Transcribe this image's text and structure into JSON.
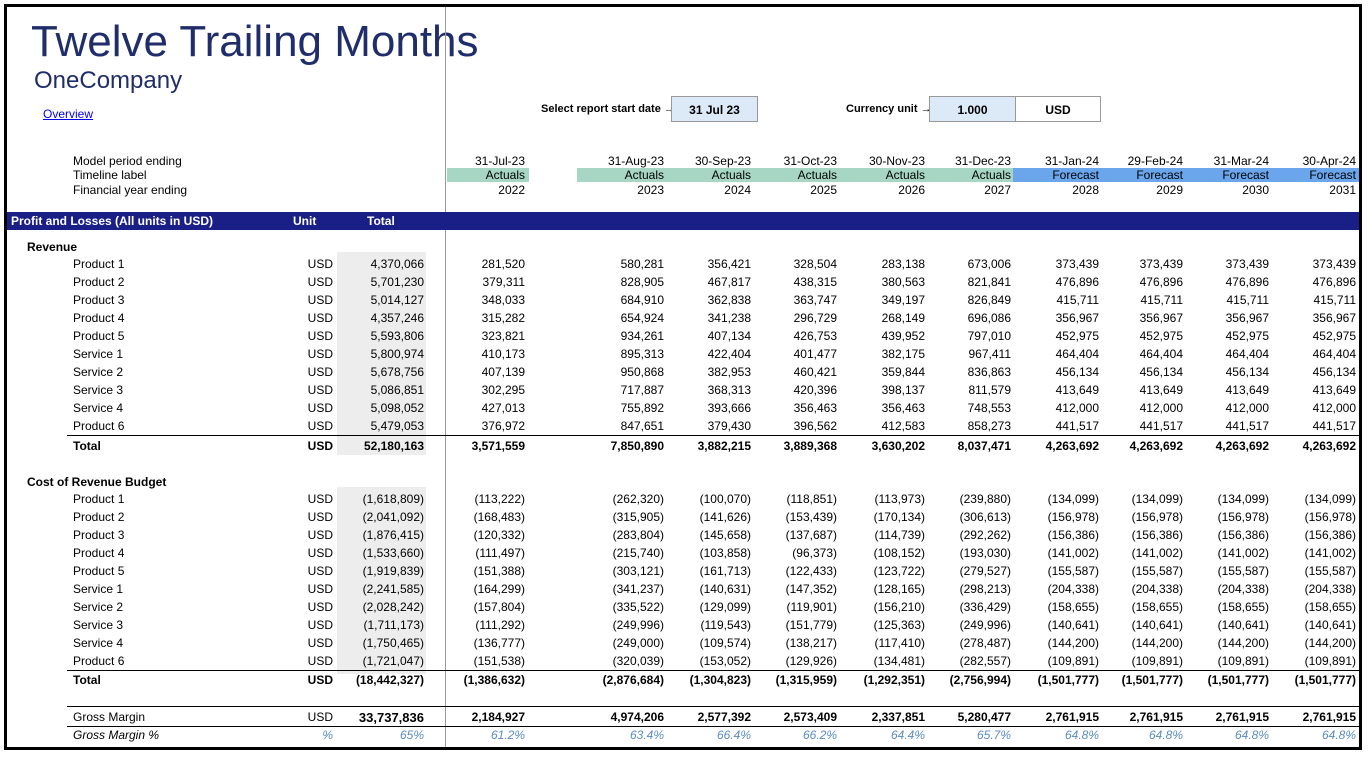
{
  "title": "Twelve Trailing Months",
  "subtitle": "OneCompany",
  "overview_link": "Overview",
  "controls": {
    "start_date_label": "Select report start date →",
    "start_date_value": "31 Jul 23",
    "currency_label": "Currency unit →",
    "currency_value": "1.000",
    "currency_code": "USD"
  },
  "header_labels": {
    "period": "Model period ending",
    "timeline": "Timeline label",
    "fy": "Financial year ending"
  },
  "columns": [
    {
      "period": "31-Jul-23",
      "timeline": "Actuals",
      "fy": "2022"
    },
    {
      "period": "31-Aug-23",
      "timeline": "Actuals",
      "fy": "2023"
    },
    {
      "period": "30-Sep-23",
      "timeline": "Actuals",
      "fy": "2024"
    },
    {
      "period": "31-Oct-23",
      "timeline": "Actuals",
      "fy": "2025"
    },
    {
      "period": "30-Nov-23",
      "timeline": "Actuals",
      "fy": "2026"
    },
    {
      "period": "31-Dec-23",
      "timeline": "Actuals",
      "fy": "2027"
    },
    {
      "period": "31-Jan-24",
      "timeline": "Forecast",
      "fy": "2028"
    },
    {
      "period": "29-Feb-24",
      "timeline": "Forecast",
      "fy": "2029"
    },
    {
      "period": "31-Mar-24",
      "timeline": "Forecast",
      "fy": "2030"
    },
    {
      "period": "30-Apr-24",
      "timeline": "Forecast",
      "fy": "2031"
    }
  ],
  "band": {
    "title": "Profit and Losses (All units in USD)",
    "unit": "Unit",
    "total": "Total"
  },
  "revenue": {
    "title": "Revenue",
    "rows": [
      {
        "label": "Product 1",
        "unit": "USD",
        "total": "4,370,066",
        "values": [
          "281,520",
          "580,281",
          "356,421",
          "328,504",
          "283,138",
          "673,006",
          "373,439",
          "373,439",
          "373,439",
          "373,439"
        ]
      },
      {
        "label": "Product 2",
        "unit": "USD",
        "total": "5,701,230",
        "values": [
          "379,311",
          "828,905",
          "467,817",
          "438,315",
          "380,563",
          "821,841",
          "476,896",
          "476,896",
          "476,896",
          "476,896"
        ]
      },
      {
        "label": "Product 3",
        "unit": "USD",
        "total": "5,014,127",
        "values": [
          "348,033",
          "684,910",
          "362,838",
          "363,747",
          "349,197",
          "826,849",
          "415,711",
          "415,711",
          "415,711",
          "415,711"
        ]
      },
      {
        "label": "Product 4",
        "unit": "USD",
        "total": "4,357,246",
        "values": [
          "315,282",
          "654,924",
          "341,238",
          "296,729",
          "268,149",
          "696,086",
          "356,967",
          "356,967",
          "356,967",
          "356,967"
        ]
      },
      {
        "label": "Product 5",
        "unit": "USD",
        "total": "5,593,806",
        "values": [
          "323,821",
          "934,261",
          "407,134",
          "426,753",
          "439,952",
          "797,010",
          "452,975",
          "452,975",
          "452,975",
          "452,975"
        ]
      },
      {
        "label": "Service 1",
        "unit": "USD",
        "total": "5,800,974",
        "values": [
          "410,173",
          "895,313",
          "422,404",
          "401,477",
          "382,175",
          "967,411",
          "464,404",
          "464,404",
          "464,404",
          "464,404"
        ]
      },
      {
        "label": "Service 2",
        "unit": "USD",
        "total": "5,678,756",
        "values": [
          "407,139",
          "950,868",
          "382,953",
          "460,421",
          "359,844",
          "836,863",
          "456,134",
          "456,134",
          "456,134",
          "456,134"
        ]
      },
      {
        "label": "Service 3",
        "unit": "USD",
        "total": "5,086,851",
        "values": [
          "302,295",
          "717,887",
          "368,313",
          "420,396",
          "398,137",
          "811,579",
          "413,649",
          "413,649",
          "413,649",
          "413,649"
        ]
      },
      {
        "label": "Service 4",
        "unit": "USD",
        "total": "5,098,052",
        "values": [
          "427,013",
          "755,892",
          "393,666",
          "356,463",
          "356,463",
          "748,553",
          "412,000",
          "412,000",
          "412,000",
          "412,000"
        ]
      },
      {
        "label": "Product 6",
        "unit": "USD",
        "total": "5,479,053",
        "values": [
          "376,972",
          "847,651",
          "379,430",
          "396,562",
          "412,583",
          "858,273",
          "441,517",
          "441,517",
          "441,517",
          "441,517"
        ]
      }
    ],
    "total": {
      "label": "Total",
      "unit": "USD",
      "total": "52,180,163",
      "values": [
        "3,571,559",
        "7,850,890",
        "3,882,215",
        "3,889,368",
        "3,630,202",
        "8,037,471",
        "4,263,692",
        "4,263,692",
        "4,263,692",
        "4,263,692"
      ]
    }
  },
  "cost": {
    "title": "Cost of Revenue Budget",
    "rows": [
      {
        "label": "Product 1",
        "unit": "USD",
        "total": "(1,618,809)",
        "values": [
          "(113,222)",
          "(262,320)",
          "(100,070)",
          "(118,851)",
          "(113,973)",
          "(239,880)",
          "(134,099)",
          "(134,099)",
          "(134,099)",
          "(134,099)"
        ]
      },
      {
        "label": "Product 2",
        "unit": "USD",
        "total": "(2,041,092)",
        "values": [
          "(168,483)",
          "(315,905)",
          "(141,626)",
          "(153,439)",
          "(170,134)",
          "(306,613)",
          "(156,978)",
          "(156,978)",
          "(156,978)",
          "(156,978)"
        ]
      },
      {
        "label": "Product 3",
        "unit": "USD",
        "total": "(1,876,415)",
        "values": [
          "(120,332)",
          "(283,804)",
          "(145,658)",
          "(137,687)",
          "(114,739)",
          "(292,262)",
          "(156,386)",
          "(156,386)",
          "(156,386)",
          "(156,386)"
        ]
      },
      {
        "label": "Product 4",
        "unit": "USD",
        "total": "(1,533,660)",
        "values": [
          "(111,497)",
          "(215,740)",
          "(103,858)",
          "(96,373)",
          "(108,152)",
          "(193,030)",
          "(141,002)",
          "(141,002)",
          "(141,002)",
          "(141,002)"
        ]
      },
      {
        "label": "Product 5",
        "unit": "USD",
        "total": "(1,919,839)",
        "values": [
          "(151,388)",
          "(303,121)",
          "(161,713)",
          "(122,433)",
          "(123,722)",
          "(279,527)",
          "(155,587)",
          "(155,587)",
          "(155,587)",
          "(155,587)"
        ]
      },
      {
        "label": "Service 1",
        "unit": "USD",
        "total": "(2,241,585)",
        "values": [
          "(164,299)",
          "(341,237)",
          "(140,631)",
          "(147,352)",
          "(128,165)",
          "(298,213)",
          "(204,338)",
          "(204,338)",
          "(204,338)",
          "(204,338)"
        ]
      },
      {
        "label": "Service 2",
        "unit": "USD",
        "total": "(2,028,242)",
        "values": [
          "(157,804)",
          "(335,522)",
          "(129,099)",
          "(119,901)",
          "(156,210)",
          "(336,429)",
          "(158,655)",
          "(158,655)",
          "(158,655)",
          "(158,655)"
        ]
      },
      {
        "label": "Service 3",
        "unit": "USD",
        "total": "(1,711,173)",
        "values": [
          "(111,292)",
          "(249,996)",
          "(119,543)",
          "(151,779)",
          "(125,363)",
          "(249,996)",
          "(140,641)",
          "(140,641)",
          "(140,641)",
          "(140,641)"
        ]
      },
      {
        "label": "Service 4",
        "unit": "USD",
        "total": "(1,750,465)",
        "values": [
          "(136,777)",
          "(249,000)",
          "(109,574)",
          "(138,217)",
          "(117,410)",
          "(278,487)",
          "(144,200)",
          "(144,200)",
          "(144,200)",
          "(144,200)"
        ]
      },
      {
        "label": "Product 6",
        "unit": "USD",
        "total": "(1,721,047)",
        "values": [
          "(151,538)",
          "(320,039)",
          "(153,052)",
          "(129,926)",
          "(134,481)",
          "(282,557)",
          "(109,891)",
          "(109,891)",
          "(109,891)",
          "(109,891)"
        ]
      }
    ],
    "total": {
      "label": "Total",
      "unit": "USD",
      "total": "(18,442,327)",
      "values": [
        "(1,386,632)",
        "(2,876,684)",
        "(1,304,823)",
        "(1,315,959)",
        "(1,292,351)",
        "(2,756,994)",
        "(1,501,777)",
        "(1,501,777)",
        "(1,501,777)",
        "(1,501,777)"
      ]
    }
  },
  "gross_margin": {
    "label": "Gross Margin",
    "unit": "USD",
    "total": "33,737,836",
    "values": [
      "2,184,927",
      "4,974,206",
      "2,577,392",
      "2,573,409",
      "2,337,851",
      "5,280,477",
      "2,761,915",
      "2,761,915",
      "2,761,915",
      "2,761,915"
    ]
  },
  "gross_margin_pct": {
    "label": "Gross Margin %",
    "unit": "%",
    "total": "65%",
    "values": [
      "61.2%",
      "63.4%",
      "66.4%",
      "66.2%",
      "64.4%",
      "65.7%",
      "64.8%",
      "64.8%",
      "64.8%",
      "64.8%"
    ]
  },
  "colors": {
    "title": "#1f2d6b",
    "band": "#1a1f87",
    "actuals": "#a8d6c5",
    "forecast": "#6ba6ec",
    "input_blue": "#dce9f6",
    "pct_blue": "#5b8bbf"
  }
}
